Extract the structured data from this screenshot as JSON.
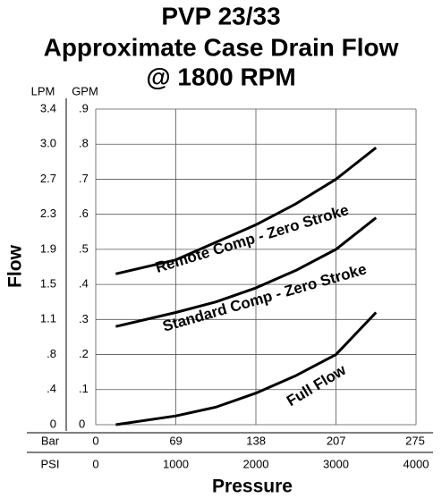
{
  "chart_data": {
    "type": "line",
    "title": [
      "PVP 23/33",
      "Approximate Case Drain Flow",
      "@ 1800 RPM"
    ],
    "y_label": "Flow",
    "x_label": "Pressure",
    "y_unit": "GPM",
    "y2_unit": "LPM",
    "x_unit": "PSI",
    "x2_unit": "Bar",
    "x": [
      250,
      1000,
      1500,
      2000,
      2500,
      3000,
      3500
    ],
    "series": [
      {
        "name": "Remote Comp - Zero Stroke",
        "color": "#000000",
        "values": [
          0.43,
          0.47,
          0.52,
          0.57,
          0.63,
          0.7,
          0.79
        ]
      },
      {
        "name": "Standard Comp - Zero Stroke",
        "color": "#000000",
        "values": [
          0.28,
          0.32,
          0.35,
          0.39,
          0.44,
          0.5,
          0.59
        ]
      },
      {
        "name": "Full Flow",
        "color": "#000000",
        "values": [
          0.0,
          0.025,
          0.05,
          0.09,
          0.14,
          0.2,
          0.32
        ]
      }
    ],
    "xlim": [
      0,
      4000
    ],
    "xticks": [
      0,
      1000,
      2000,
      3000,
      4000
    ],
    "x2lim": [
      0,
      275.8
    ],
    "x2ticks": [
      0,
      69,
      138,
      207,
      275
    ],
    "ylim": [
      0,
      0.9
    ],
    "yticks": [
      0,
      {
        "value": 0.1,
        "label": ".1"
      },
      {
        "value": 0.2,
        "label": ".2"
      },
      {
        "value": 0.3,
        "label": ".3"
      },
      {
        "value": 0.4,
        "label": ".4"
      },
      {
        "value": 0.5,
        "label": ".5"
      },
      {
        "value": 0.6,
        "label": ".6"
      },
      {
        "value": 0.7,
        "label": ".7"
      },
      {
        "value": 0.8,
        "label": ".8"
      },
      {
        "value": 0.9,
        "label": ".9"
      }
    ],
    "y2lim": [
      0,
      3.407
    ],
    "y2ticks": [
      0,
      {
        "value": 0.379,
        "label": ".4"
      },
      {
        "value": 0.757,
        "label": ".8"
      },
      {
        "value": 1.136,
        "label": "1.1"
      },
      {
        "value": 1.514,
        "label": "1.5"
      },
      {
        "value": 1.893,
        "label": "1.9"
      },
      {
        "value": 2.271,
        "label": "2.3"
      },
      {
        "value": 2.65,
        "label": "2.7"
      },
      {
        "value": 3.028,
        "label": "3.0"
      },
      {
        "value": 3.407,
        "label": "3.4"
      }
    ],
    "grid": true
  }
}
